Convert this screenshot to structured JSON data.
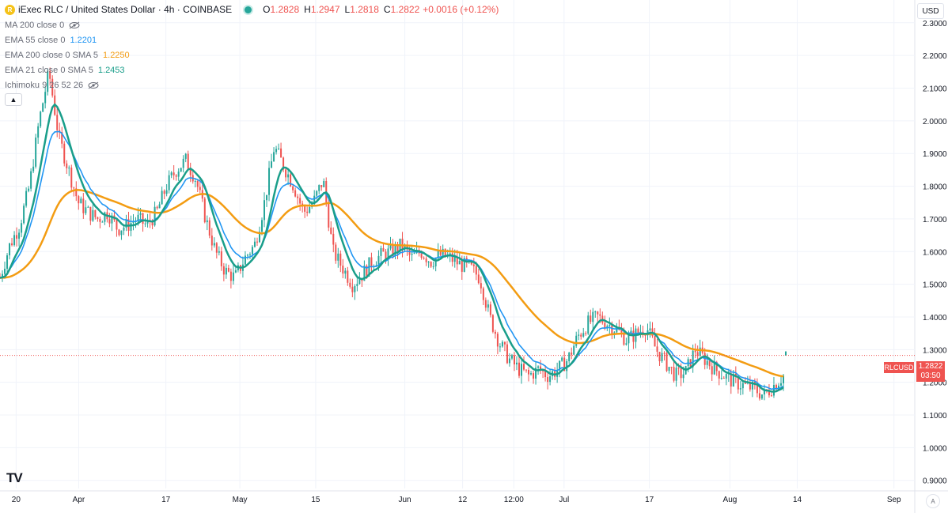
{
  "header": {
    "symbol_title": "iExec RLC / United States Dollar · 4h · COINBASE",
    "ohlc": {
      "o_label": "O",
      "o_value": "1.2828",
      "h_label": "H",
      "h_value": "1.2947",
      "l_label": "L",
      "l_value": "1.2818",
      "c_label": "C",
      "c_value": "1.2822",
      "change": "+0.0016 (+0.12%)"
    }
  },
  "indicators": [
    {
      "label": "MA 200 close 0",
      "value": "",
      "color": "#2962ff",
      "hidden": true
    },
    {
      "label": "EMA 55 close 0",
      "value": "1.2201",
      "color": "#2196f3",
      "hidden": false
    },
    {
      "label": "EMA 200 close 0 SMA 5",
      "value": "1.2250",
      "color": "#f39c12",
      "hidden": false
    },
    {
      "label": "EMA 21 close 0 SMA 5",
      "value": "1.2453",
      "color": "#26a69a",
      "hidden": false
    },
    {
      "label": "Ichimoku 9 26 52 26",
      "value": "",
      "color": "#9598a1",
      "hidden": true
    }
  ],
  "currency_button": "USD",
  "price_marker": {
    "symbol": "RLCUSD",
    "price": "1.2822",
    "countdown": "03:50"
  },
  "logo_text": "TV",
  "auto_scale_label": "A",
  "colors": {
    "up": "#26a69a",
    "down": "#ef5350",
    "ema21": "#1a9e8a",
    "ema55": "#2196f3",
    "ema200": "#f39c12"
  },
  "chart_data": {
    "type": "candlestick",
    "interval": "4h",
    "y_axis_ticks": [
      "2.3000",
      "2.2000",
      "2.1000",
      "2.0000",
      "1.9000",
      "1.8000",
      "1.7000",
      "1.6000",
      "1.5000",
      "1.4000",
      "1.3000",
      "1.2000",
      "1.1000",
      "1.0000",
      "0.9000"
    ],
    "ylim": [
      0.88,
      2.36
    ],
    "x_axis_ticks": [
      "20",
      "Apr",
      "17",
      "May",
      "15",
      "Jun",
      "12",
      "12:00",
      "Jul",
      "17",
      "Aug",
      "14",
      "Sep"
    ],
    "close_path": {
      "t": [
        0,
        2,
        4,
        6,
        8,
        10,
        12,
        14,
        16,
        18,
        20,
        22,
        24,
        26,
        28,
        30,
        32,
        34,
        36,
        38,
        40,
        42,
        44,
        46,
        48,
        50,
        52,
        54,
        56,
        58,
        60,
        62,
        64,
        66,
        68,
        70,
        72,
        74,
        76,
        78,
        80,
        82,
        84,
        86,
        88,
        90,
        92,
        94,
        96,
        98,
        100,
        102,
        104,
        106,
        108,
        110,
        112,
        114,
        116,
        118,
        120,
        122,
        124,
        126,
        128,
        130,
        132,
        134,
        136,
        138,
        140,
        142,
        144,
        146,
        148,
        150,
        152,
        154,
        156,
        158,
        160
      ],
      "close": [
        1.52,
        1.62,
        1.68,
        1.8,
        2.0,
        2.15,
        1.95,
        1.85,
        1.75,
        1.72,
        1.7,
        1.72,
        1.67,
        1.68,
        1.7,
        1.68,
        1.72,
        1.8,
        1.85,
        1.88,
        1.82,
        1.7,
        1.6,
        1.54,
        1.52,
        1.58,
        1.62,
        1.75,
        1.92,
        1.86,
        1.8,
        1.72,
        1.75,
        1.82,
        1.6,
        1.55,
        1.5,
        1.53,
        1.57,
        1.59,
        1.6,
        1.62,
        1.58,
        1.6,
        1.57,
        1.59,
        1.58,
        1.56,
        1.55,
        1.52,
        1.4,
        1.32,
        1.27,
        1.24,
        1.22,
        1.24,
        1.22,
        1.24,
        1.27,
        1.34,
        1.38,
        1.4,
        1.38,
        1.36,
        1.33,
        1.35,
        1.37,
        1.3,
        1.26,
        1.22,
        1.23,
        1.3,
        1.27,
        1.24,
        1.22,
        1.2,
        1.19,
        1.18,
        1.16,
        1.19,
        1.22
      ]
    },
    "series": [
      {
        "name": "EMA 21 close 0 SMA 5",
        "last_value": 1.2453
      },
      {
        "name": "EMA 55 close 0",
        "last_value": 1.2201
      },
      {
        "name": "EMA 200 close 0 SMA 5",
        "last_value": 1.225
      }
    ],
    "last_close": 1.2822
  }
}
